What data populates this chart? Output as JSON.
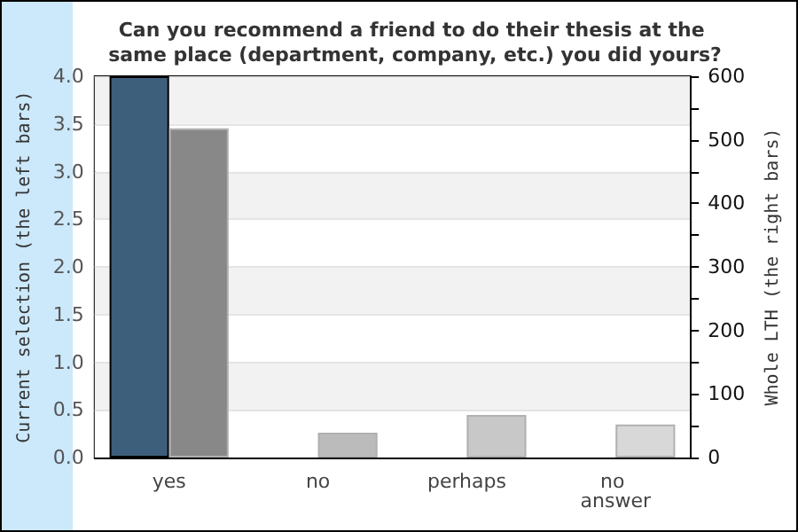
{
  "chart_data": {
    "type": "bar",
    "title": "Can you recommend a friend to do their thesis at the same place (department, company, etc.) you did yours?",
    "categories": [
      "yes",
      "no",
      "perhaps",
      "no answer"
    ],
    "ylabel": "Current selection (the left bars)",
    "y2label": "Whole LTH (the right bars)",
    "series": [
      {
        "color": "#3e5f7c",
        "values": [
          4,
          0,
          0,
          0
        ]
      },
      {
        "axis": "y2",
        "colors": [
          "#888888",
          "#bbbbbb",
          "#c8c8c8",
          "#d8d8d8"
        ],
        "values": [
          518,
          39,
          67,
          52
        ]
      }
    ],
    "ylim": [
      0,
      4
    ],
    "yticks": [
      {
        "value": 0,
        "label": "0.0"
      },
      {
        "value": 0.5,
        "label": "0.5"
      },
      {
        "value": 1,
        "label": "1.0"
      },
      {
        "value": 1.5,
        "label": "1.5"
      },
      {
        "value": 2,
        "label": "2.0"
      },
      {
        "value": 2.5,
        "label": "2.5"
      },
      {
        "value": 3,
        "label": "3.0"
      },
      {
        "value": 3.5,
        "label": "3.5"
      },
      {
        "value": 4,
        "label": "4.0"
      }
    ],
    "y2lim": [
      0,
      600
    ],
    "y2ticks": [
      0,
      100,
      200,
      300,
      400,
      500,
      600
    ],
    "grid": "y"
  }
}
